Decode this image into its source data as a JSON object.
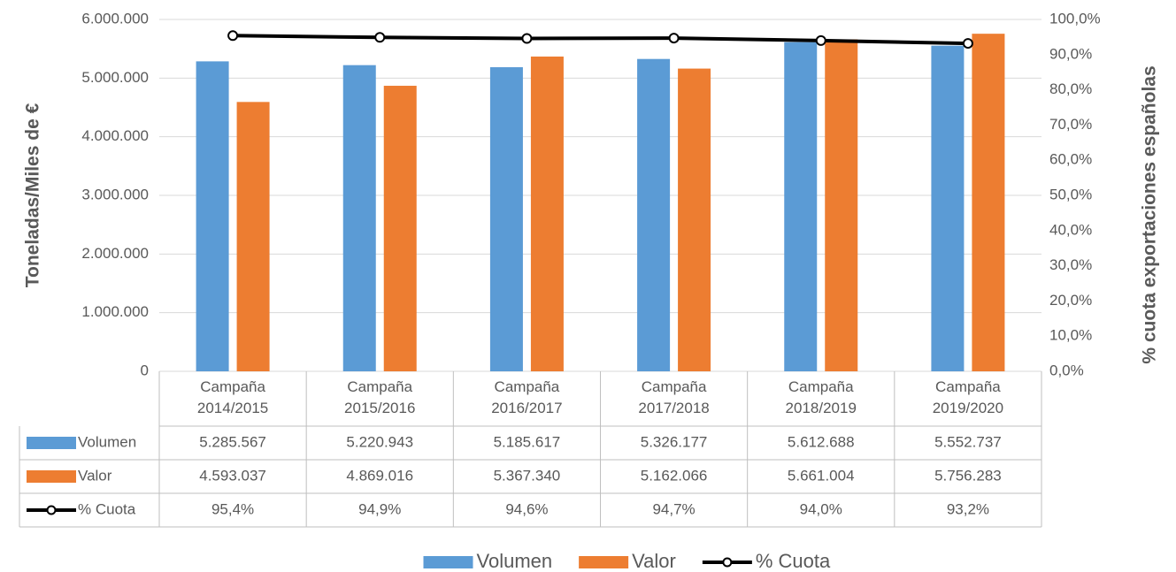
{
  "chart_data": {
    "type": "bar",
    "categories": [
      "Campaña\n2014/2015",
      "Campaña\n2015/2016",
      "Campaña\n2016/2017",
      "Campaña\n2017/2018",
      "Campaña\n2018/2019",
      "Campaña\n2019/2020"
    ],
    "series": [
      {
        "name": "Volumen",
        "color": "#5b9bd5",
        "type": "bar",
        "values": [
          5285567,
          5220943,
          5185617,
          5326177,
          5612688,
          5552737
        ],
        "value_labels": [
          "5.285.567",
          "5.220.943",
          "5.185.617",
          "5.326.177",
          "5.612.688",
          "5.552.737"
        ]
      },
      {
        "name": "Valor",
        "color": "#ed7d31",
        "type": "bar",
        "values": [
          4593037,
          4869016,
          5367340,
          5162066,
          5661004,
          5756283
        ],
        "value_labels": [
          "4.593.037",
          "4.869.016",
          "5.367.340",
          "5.162.066",
          "5.661.004",
          "5.756.283"
        ]
      },
      {
        "name": "% Cuota",
        "color": "#000000",
        "type": "line",
        "axis": "y2",
        "values": [
          95.4,
          94.9,
          94.6,
          94.7,
          94.0,
          93.2
        ],
        "value_labels": [
          "95,4%",
          "94,9%",
          "94,6%",
          "94,7%",
          "94,0%",
          "93,2%"
        ]
      }
    ],
    "ylabel": "Toneladas/Miles de €",
    "y2label": "% cuota exportaciones españolas",
    "ylim": [
      0,
      6000000
    ],
    "yticks": [
      0,
      {
        "value": 1000000,
        "label": "1.000.000"
      },
      {
        "value": 2000000,
        "label": "2.000.000"
      },
      {
        "value": 3000000,
        "label": "3.000.000"
      },
      {
        "value": 4000000,
        "label": "4.000.000"
      },
      {
        "value": 5000000,
        "label": "5.000.000"
      },
      {
        "value": 6000000,
        "label": "6.000.000"
      }
    ],
    "y2lim": [
      0,
      100
    ],
    "y2ticks": [
      {
        "value": 0,
        "label": "0,0%"
      },
      {
        "value": 10,
        "label": "10,0%"
      },
      {
        "value": 20,
        "label": "20,0%"
      },
      {
        "value": 30,
        "label": "30,0%"
      },
      {
        "value": 40,
        "label": "40,0%"
      },
      {
        "value": 50,
        "label": "50,0%"
      },
      {
        "value": 60,
        "label": "60,0%"
      },
      {
        "value": 70,
        "label": "70,0%"
      },
      {
        "value": 80,
        "label": "80,0%"
      },
      {
        "value": 90,
        "label": "90,0%"
      },
      {
        "value": 100,
        "label": "100,0%"
      }
    ],
    "grid": true,
    "legend": "bottom",
    "data_table": true
  }
}
